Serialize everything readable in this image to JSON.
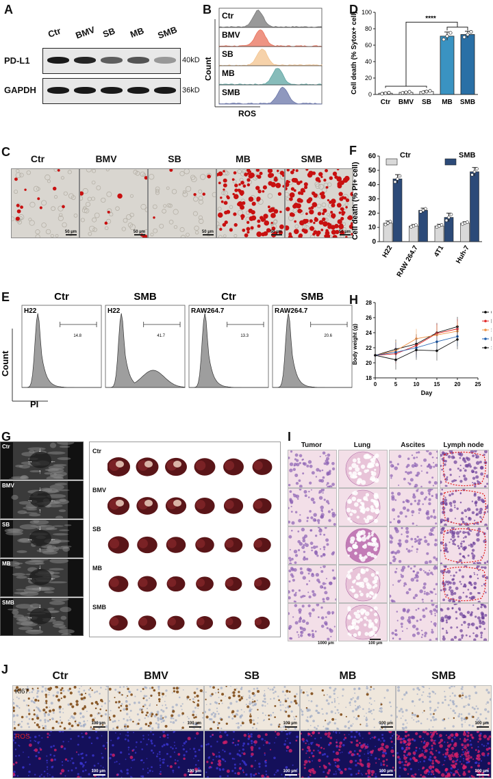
{
  "panelA": {
    "letter": "A",
    "lanes": [
      "Ctr",
      "BMV",
      "SB",
      "MB",
      "SMB"
    ],
    "rows": [
      {
        "name": "PD-L1",
        "marker": "40kD",
        "intensity": [
          1.0,
          0.95,
          0.7,
          0.75,
          0.45
        ]
      },
      {
        "name": "GAPDH",
        "marker": "36kD",
        "intensity": [
          1.0,
          1.0,
          1.0,
          1.0,
          1.0
        ]
      }
    ]
  },
  "panelB": {
    "letter": "B",
    "ylabel": "Count",
    "xlabel": "ROS",
    "groups": [
      "Ctr",
      "BMV",
      "SB",
      "MB",
      "SMB"
    ],
    "peaks": [
      0.38,
      0.4,
      0.42,
      0.57,
      0.62
    ],
    "colors": [
      "#777777",
      "#e8705a",
      "#f3c38e",
      "#5fa6a3",
      "#6a75a8"
    ]
  },
  "panelC": {
    "letter": "C",
    "groups": [
      "Ctr",
      "BMV",
      "SB",
      "MB",
      "SMB"
    ],
    "scale": "50 µm",
    "red_density": [
      0.06,
      0.04,
      0.03,
      0.6,
      0.8
    ]
  },
  "panelD": {
    "letter": "D",
    "chart_data": {
      "type": "bar",
      "categories": [
        "Ctr",
        "BMV",
        "SB",
        "MB",
        "SMB"
      ],
      "values": [
        1.5,
        2.5,
        3.5,
        71,
        73
      ],
      "errors": [
        0.8,
        0.8,
        1,
        5,
        4
      ],
      "ylabel": "Cell death (% Sytox+ cell)",
      "ylim": [
        0,
        100
      ],
      "yticks": [
        0,
        20,
        40,
        60,
        80,
        100
      ],
      "colors": [
        "#ffffff",
        "#ffffff",
        "#ffffff",
        "#3a93c2",
        "#2a70a6"
      ],
      "significance": "****"
    }
  },
  "panelE": {
    "letter": "E",
    "ylabel": "Count",
    "xlabel": "PI",
    "plots": [
      {
        "title": "Ctr",
        "cell": "H22",
        "pct": "14.8"
      },
      {
        "title": "SMB",
        "cell": "H22",
        "pct": "41.7"
      },
      {
        "title": "Ctr",
        "cell": "RAW264.7",
        "pct": "13.3"
      },
      {
        "title": "SMB",
        "cell": "RAW264.7",
        "pct": "20.6"
      }
    ]
  },
  "panelF": {
    "letter": "F",
    "chart_data": {
      "type": "bar",
      "categories": [
        "H22",
        "RAW 264.7",
        "4T1",
        "Huh-7"
      ],
      "series": [
        {
          "name": "Ctr",
          "values": [
            13,
            11,
            11,
            13
          ],
          "errors": [
            1.5,
            1,
            1.2,
            1
          ],
          "color": "#d9d9d9"
        },
        {
          "name": "SMB",
          "values": [
            44,
            22,
            17,
            49
          ],
          "errors": [
            3,
            1.5,
            3,
            3
          ],
          "color": "#2c4a78"
        }
      ],
      "ylabel": "Cell death (% PI+ cell)",
      "ylim": [
        0,
        60
      ],
      "yticks": [
        0,
        10,
        20,
        30,
        40,
        50,
        60
      ]
    }
  },
  "panelG": {
    "letter": "G",
    "groups": [
      "Ctr",
      "BMV",
      "SB",
      "MB",
      "SMB"
    ],
    "liver_counts": [
      6,
      6,
      6,
      6,
      6
    ]
  },
  "panelH": {
    "letter": "H",
    "chart_data": {
      "type": "line",
      "x": [
        0,
        5,
        10,
        15,
        20
      ],
      "series": [
        {
          "name": "Ctr",
          "values": [
            21,
            21.8,
            22.5,
            24,
            24.8
          ],
          "color": "#000000"
        },
        {
          "name": "BMV",
          "values": [
            21,
            21.2,
            22.3,
            23.9,
            24.5
          ],
          "color": "#e02020"
        },
        {
          "name": "SB",
          "values": [
            21,
            21.6,
            23.2,
            23.7,
            24.2
          ],
          "color": "#f09040"
        },
        {
          "name": "MB",
          "values": [
            21,
            21.4,
            22,
            22.8,
            23.5
          ],
          "color": "#2060b0"
        },
        {
          "name": "SMB",
          "values": [
            21,
            20.4,
            21.7,
            21.6,
            23.1
          ],
          "color": "#101010"
        }
      ],
      "xlabel": "Day",
      "ylabel": "Body weight (g)",
      "xlim": [
        0,
        25
      ],
      "ylim": [
        18,
        28
      ],
      "xticks": [
        0,
        5,
        10,
        15,
        20,
        25
      ],
      "yticks": [
        18,
        20,
        22,
        24,
        26,
        28
      ]
    }
  },
  "panelI": {
    "letter": "I",
    "columns": [
      "Tumor",
      "Lung",
      "Ascites",
      "Lymph node"
    ],
    "scale_left": "1000 µm",
    "scale_mid": "100 µm"
  },
  "panelJ": {
    "letter": "J",
    "groups": [
      "Ctr",
      "BMV",
      "SB",
      "MB",
      "SMB"
    ],
    "row1": "Ki67",
    "row2": "ROS",
    "scale": "100 µm"
  }
}
